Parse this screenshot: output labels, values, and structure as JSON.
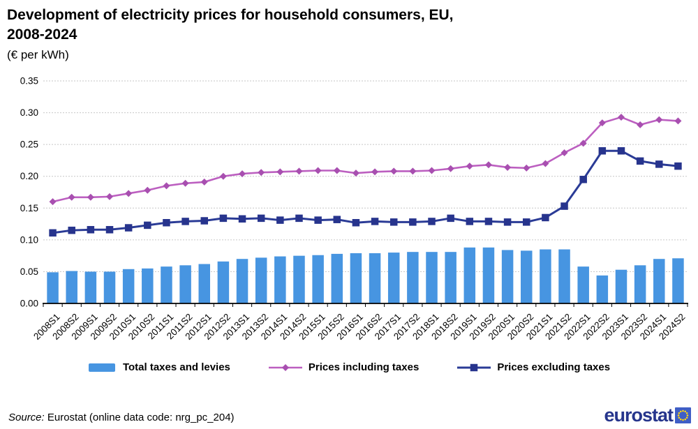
{
  "header": {
    "title_line1": "Development of electricity prices for household consumers, EU,",
    "title_line2": "2008-2024",
    "subtitle": "(€ per kWh)"
  },
  "chart_data": {
    "type": "combo_bar_line",
    "title": "Development of electricity prices for household consumers, EU, 2008-2024",
    "unit": "€ per kWh",
    "categories": [
      "2008S1",
      "2008S2",
      "2009S1",
      "2009S2",
      "2010S1",
      "2010S2",
      "2011S1",
      "2011S2",
      "2012S1",
      "2012S2",
      "2013S1",
      "2013S2",
      "2014S1",
      "2014S2",
      "2015S1",
      "2015S2",
      "2016S1",
      "2016S2",
      "2017S1",
      "2017S2",
      "2018S1",
      "2018S2",
      "2019S1",
      "2019S2",
      "2020S1",
      "2020S2",
      "2021S1",
      "2021S2",
      "2022S1",
      "2022S2",
      "2023S1",
      "2023S2",
      "2024S1",
      "2024S2"
    ],
    "series": [
      {
        "name": "Total taxes and levies",
        "type": "bar",
        "color": "#4795E1",
        "values": [
          0.049,
          0.051,
          0.05,
          0.05,
          0.054,
          0.055,
          0.058,
          0.06,
          0.062,
          0.066,
          0.07,
          0.072,
          0.074,
          0.075,
          0.076,
          0.078,
          0.079,
          0.079,
          0.08,
          0.081,
          0.081,
          0.081,
          0.088,
          0.088,
          0.084,
          0.083,
          0.085,
          0.085,
          0.058,
          0.044,
          0.053,
          0.06,
          0.07,
          0.071
        ]
      },
      {
        "name": "Prices including taxes",
        "type": "line",
        "marker": "diamond",
        "color": "#BC5FC0",
        "marker_color": "#A84FB0",
        "values": [
          0.16,
          0.167,
          0.167,
          0.168,
          0.173,
          0.178,
          0.185,
          0.189,
          0.191,
          0.2,
          0.204,
          0.206,
          0.207,
          0.208,
          0.209,
          0.209,
          0.205,
          0.207,
          0.208,
          0.208,
          0.209,
          0.212,
          0.216,
          0.218,
          0.214,
          0.213,
          0.22,
          0.237,
          0.252,
          0.284,
          0.293,
          0.281,
          0.289,
          0.287
        ]
      },
      {
        "name": "Prices excluding taxes",
        "type": "line",
        "marker": "square",
        "color": "#2A3B96",
        "marker_color": "#27348D",
        "values": [
          0.111,
          0.115,
          0.116,
          0.116,
          0.119,
          0.123,
          0.127,
          0.129,
          0.13,
          0.134,
          0.133,
          0.134,
          0.131,
          0.134,
          0.131,
          0.132,
          0.127,
          0.129,
          0.128,
          0.128,
          0.129,
          0.134,
          0.129,
          0.129,
          0.128,
          0.128,
          0.135,
          0.153,
          0.195,
          0.24,
          0.24,
          0.224,
          0.219,
          0.216
        ]
      }
    ],
    "ylim": [
      0,
      0.35
    ],
    "ytick_step": 0.05,
    "ytick_labels": [
      "0.00",
      "0.05",
      "0.10",
      "0.15",
      "0.20",
      "0.25",
      "0.30",
      "0.35"
    ],
    "grid": "horizontal-dashed",
    "grid_color": "#C6C6C6",
    "legend_position": "bottom"
  },
  "footer": {
    "source_prefix": "Source:",
    "source_text": " Eurostat (online data code: nrg_pc_204)",
    "logo_text": "eurostat"
  }
}
